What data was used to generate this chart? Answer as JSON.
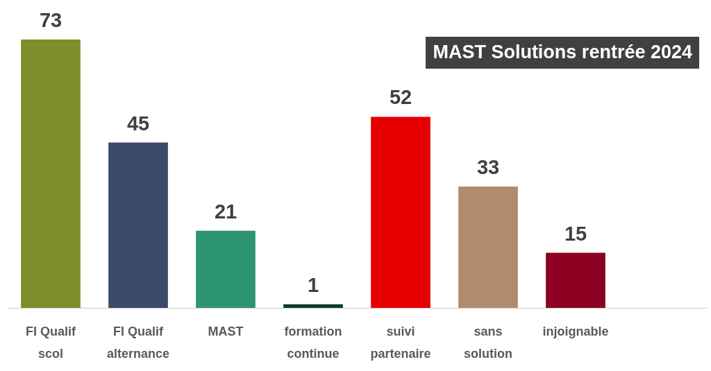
{
  "chart_data": {
    "type": "bar",
    "title": "MAST Solutions rentrée 2024",
    "categories": [
      "FI Qualif scol",
      "FI Qualif alternance",
      "MAST",
      "formation continue",
      "suivi partenaire",
      "sans solution",
      "injoignable",
      null
    ],
    "values": [
      73,
      45,
      21,
      1,
      52,
      33,
      15,
      null
    ],
    "colors": [
      "#7d8f2a",
      "#3a4a68",
      "#2d9472",
      "#0b3d2e",
      "#e60000",
      "#b08c6e",
      "#8c0021",
      null
    ],
    "data_labels": true
  }
}
